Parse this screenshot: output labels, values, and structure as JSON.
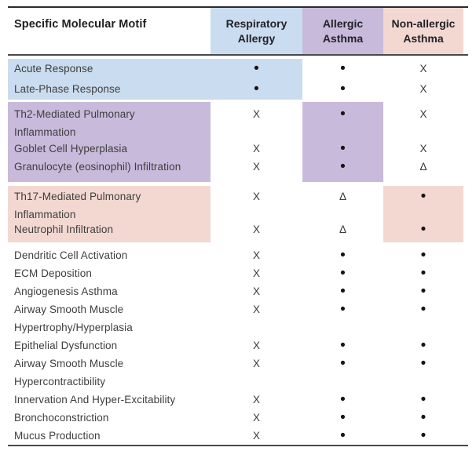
{
  "colors": {
    "highlight_blue": "#cadcef",
    "highlight_purple": "#c8badb",
    "highlight_pink": "#f3d8d2"
  },
  "table": {
    "header": {
      "motif": "Specific Molecular Motif",
      "columns": [
        {
          "line1": "Respiratory",
          "line2": "Allergy"
        },
        {
          "line1": "Allergic",
          "line2": "Asthma"
        },
        {
          "line1": "Non-allergic",
          "line2": "Asthma"
        }
      ]
    },
    "symbols": {
      "present": "•",
      "absent": "X",
      "partial": "Δ"
    },
    "rows": [
      {
        "label": "Acute Response",
        "label2": "",
        "section": "blue",
        "values": [
          "•",
          "•",
          "X"
        ]
      },
      {
        "label": "Late-Phase Response",
        "label2": "",
        "section": "blue",
        "values": [
          "•",
          "•",
          "X"
        ]
      },
      {
        "label": "Th2-Mediated Pulmonary",
        "label2": "Inflammation",
        "section": "purple",
        "values": [
          "X",
          "•",
          "X"
        ]
      },
      {
        "label": "Goblet Cell Hyperplasia",
        "label2": "",
        "section": "purple",
        "values": [
          "X",
          "•",
          "X"
        ]
      },
      {
        "label": "Granulocyte (eosinophil) Infiltration",
        "label2": "",
        "section": "purple",
        "values": [
          "X",
          "•",
          "Δ"
        ]
      },
      {
        "label": "Th17-Mediated Pulmonary",
        "label2": "Inflammation",
        "section": "pink",
        "values": [
          "X",
          "Δ",
          "•"
        ]
      },
      {
        "label": "Neutrophil Infiltration",
        "label2": "",
        "section": "pink",
        "values": [
          "X",
          "Δ",
          "•"
        ]
      },
      {
        "label": "Dendritic Cell Activation",
        "label2": "",
        "section": "none",
        "values": [
          "X",
          "•",
          "•"
        ]
      },
      {
        "label": "ECM Deposition",
        "label2": "",
        "section": "none",
        "values": [
          "X",
          "•",
          "•"
        ]
      },
      {
        "label": "Angiogenesis Asthma",
        "label2": "",
        "section": "none",
        "values": [
          "X",
          "•",
          "•"
        ]
      },
      {
        "label": "Airway Smooth Muscle",
        "label2": "Hypertrophy/Hyperplasia",
        "section": "none",
        "values": [
          "X",
          "•",
          "•"
        ]
      },
      {
        "label": "Epithelial Dysfunction",
        "label2": "",
        "section": "none",
        "values": [
          "X",
          "•",
          "•"
        ]
      },
      {
        "label": "Airway Smooth Muscle",
        "label2": "Hypercontractibility",
        "section": "none",
        "values": [
          "X",
          "•",
          "•"
        ]
      },
      {
        "label": "Innervation And Hyper-Excitability",
        "label2": "",
        "section": "none",
        "values": [
          "X",
          "•",
          "•"
        ]
      },
      {
        "label": "Bronchoconstriction",
        "label2": "",
        "section": "none",
        "values": [
          "X",
          "•",
          "•"
        ]
      },
      {
        "label": "Mucus Production",
        "label2": "",
        "section": "none",
        "values": [
          "X",
          "•",
          "•"
        ]
      }
    ]
  }
}
